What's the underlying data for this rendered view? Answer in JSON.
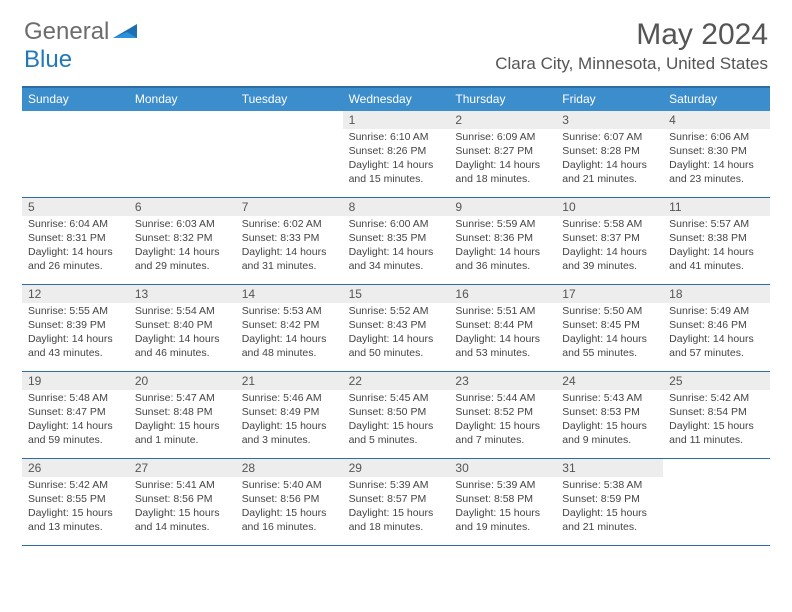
{
  "logo": {
    "general": "General",
    "blue": "Blue"
  },
  "title": "May 2024",
  "location": "Clara City, Minnesota, United States",
  "colors": {
    "header_bg": "#3c8dcc",
    "header_text": "#ffffff",
    "border": "#2e6ca4",
    "daynum_bg": "#ededed",
    "text": "#444444",
    "logo_blue": "#2378bb",
    "logo_gray": "#6c6c6c"
  },
  "weekdays": [
    "Sunday",
    "Monday",
    "Tuesday",
    "Wednesday",
    "Thursday",
    "Friday",
    "Saturday"
  ],
  "weeks": [
    [
      {
        "n": "",
        "sr": "",
        "ss": "",
        "dl": ""
      },
      {
        "n": "",
        "sr": "",
        "ss": "",
        "dl": ""
      },
      {
        "n": "",
        "sr": "",
        "ss": "",
        "dl": ""
      },
      {
        "n": "1",
        "sr": "Sunrise: 6:10 AM",
        "ss": "Sunset: 8:26 PM",
        "dl": "Daylight: 14 hours and 15 minutes."
      },
      {
        "n": "2",
        "sr": "Sunrise: 6:09 AM",
        "ss": "Sunset: 8:27 PM",
        "dl": "Daylight: 14 hours and 18 minutes."
      },
      {
        "n": "3",
        "sr": "Sunrise: 6:07 AM",
        "ss": "Sunset: 8:28 PM",
        "dl": "Daylight: 14 hours and 21 minutes."
      },
      {
        "n": "4",
        "sr": "Sunrise: 6:06 AM",
        "ss": "Sunset: 8:30 PM",
        "dl": "Daylight: 14 hours and 23 minutes."
      }
    ],
    [
      {
        "n": "5",
        "sr": "Sunrise: 6:04 AM",
        "ss": "Sunset: 8:31 PM",
        "dl": "Daylight: 14 hours and 26 minutes."
      },
      {
        "n": "6",
        "sr": "Sunrise: 6:03 AM",
        "ss": "Sunset: 8:32 PM",
        "dl": "Daylight: 14 hours and 29 minutes."
      },
      {
        "n": "7",
        "sr": "Sunrise: 6:02 AM",
        "ss": "Sunset: 8:33 PM",
        "dl": "Daylight: 14 hours and 31 minutes."
      },
      {
        "n": "8",
        "sr": "Sunrise: 6:00 AM",
        "ss": "Sunset: 8:35 PM",
        "dl": "Daylight: 14 hours and 34 minutes."
      },
      {
        "n": "9",
        "sr": "Sunrise: 5:59 AM",
        "ss": "Sunset: 8:36 PM",
        "dl": "Daylight: 14 hours and 36 minutes."
      },
      {
        "n": "10",
        "sr": "Sunrise: 5:58 AM",
        "ss": "Sunset: 8:37 PM",
        "dl": "Daylight: 14 hours and 39 minutes."
      },
      {
        "n": "11",
        "sr": "Sunrise: 5:57 AM",
        "ss": "Sunset: 8:38 PM",
        "dl": "Daylight: 14 hours and 41 minutes."
      }
    ],
    [
      {
        "n": "12",
        "sr": "Sunrise: 5:55 AM",
        "ss": "Sunset: 8:39 PM",
        "dl": "Daylight: 14 hours and 43 minutes."
      },
      {
        "n": "13",
        "sr": "Sunrise: 5:54 AM",
        "ss": "Sunset: 8:40 PM",
        "dl": "Daylight: 14 hours and 46 minutes."
      },
      {
        "n": "14",
        "sr": "Sunrise: 5:53 AM",
        "ss": "Sunset: 8:42 PM",
        "dl": "Daylight: 14 hours and 48 minutes."
      },
      {
        "n": "15",
        "sr": "Sunrise: 5:52 AM",
        "ss": "Sunset: 8:43 PM",
        "dl": "Daylight: 14 hours and 50 minutes."
      },
      {
        "n": "16",
        "sr": "Sunrise: 5:51 AM",
        "ss": "Sunset: 8:44 PM",
        "dl": "Daylight: 14 hours and 53 minutes."
      },
      {
        "n": "17",
        "sr": "Sunrise: 5:50 AM",
        "ss": "Sunset: 8:45 PM",
        "dl": "Daylight: 14 hours and 55 minutes."
      },
      {
        "n": "18",
        "sr": "Sunrise: 5:49 AM",
        "ss": "Sunset: 8:46 PM",
        "dl": "Daylight: 14 hours and 57 minutes."
      }
    ],
    [
      {
        "n": "19",
        "sr": "Sunrise: 5:48 AM",
        "ss": "Sunset: 8:47 PM",
        "dl": "Daylight: 14 hours and 59 minutes."
      },
      {
        "n": "20",
        "sr": "Sunrise: 5:47 AM",
        "ss": "Sunset: 8:48 PM",
        "dl": "Daylight: 15 hours and 1 minute."
      },
      {
        "n": "21",
        "sr": "Sunrise: 5:46 AM",
        "ss": "Sunset: 8:49 PM",
        "dl": "Daylight: 15 hours and 3 minutes."
      },
      {
        "n": "22",
        "sr": "Sunrise: 5:45 AM",
        "ss": "Sunset: 8:50 PM",
        "dl": "Daylight: 15 hours and 5 minutes."
      },
      {
        "n": "23",
        "sr": "Sunrise: 5:44 AM",
        "ss": "Sunset: 8:52 PM",
        "dl": "Daylight: 15 hours and 7 minutes."
      },
      {
        "n": "24",
        "sr": "Sunrise: 5:43 AM",
        "ss": "Sunset: 8:53 PM",
        "dl": "Daylight: 15 hours and 9 minutes."
      },
      {
        "n": "25",
        "sr": "Sunrise: 5:42 AM",
        "ss": "Sunset: 8:54 PM",
        "dl": "Daylight: 15 hours and 11 minutes."
      }
    ],
    [
      {
        "n": "26",
        "sr": "Sunrise: 5:42 AM",
        "ss": "Sunset: 8:55 PM",
        "dl": "Daylight: 15 hours and 13 minutes."
      },
      {
        "n": "27",
        "sr": "Sunrise: 5:41 AM",
        "ss": "Sunset: 8:56 PM",
        "dl": "Daylight: 15 hours and 14 minutes."
      },
      {
        "n": "28",
        "sr": "Sunrise: 5:40 AM",
        "ss": "Sunset: 8:56 PM",
        "dl": "Daylight: 15 hours and 16 minutes."
      },
      {
        "n": "29",
        "sr": "Sunrise: 5:39 AM",
        "ss": "Sunset: 8:57 PM",
        "dl": "Daylight: 15 hours and 18 minutes."
      },
      {
        "n": "30",
        "sr": "Sunrise: 5:39 AM",
        "ss": "Sunset: 8:58 PM",
        "dl": "Daylight: 15 hours and 19 minutes."
      },
      {
        "n": "31",
        "sr": "Sunrise: 5:38 AM",
        "ss": "Sunset: 8:59 PM",
        "dl": "Daylight: 15 hours and 21 minutes."
      },
      {
        "n": "",
        "sr": "",
        "ss": "",
        "dl": ""
      }
    ]
  ]
}
